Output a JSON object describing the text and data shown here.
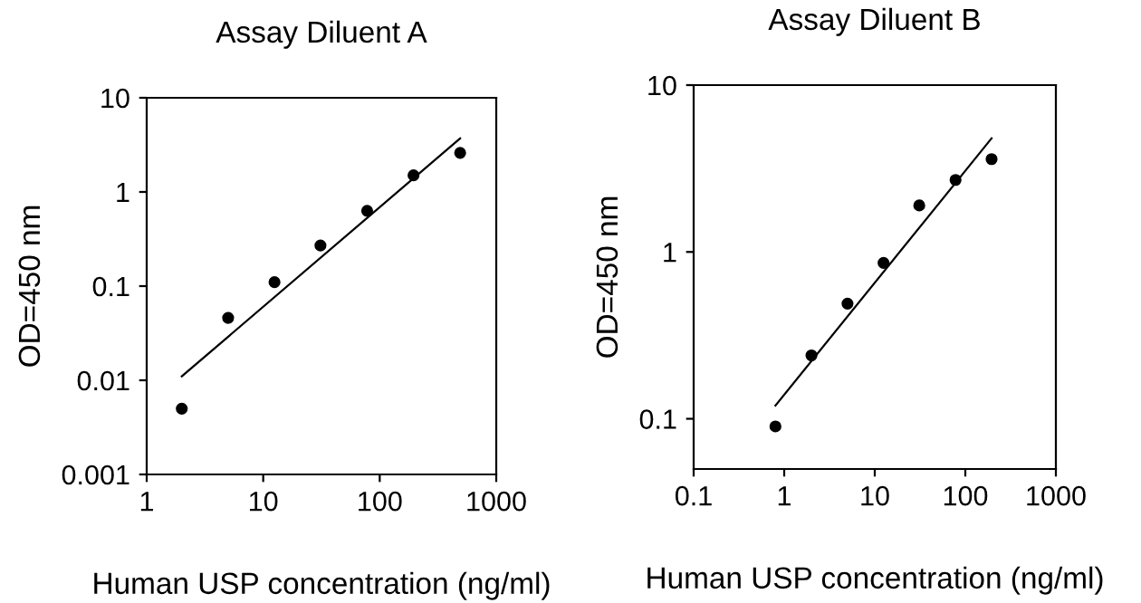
{
  "chart_data": [
    {
      "type": "scatter",
      "title": "Assay Diluent A",
      "xlabel": "Human USP concentration (ng/ml)",
      "ylabel": "OD=450 nm",
      "log": "xy",
      "xlim": [
        1,
        1000
      ],
      "xticks": [
        1,
        10,
        100,
        1000
      ],
      "ylim": [
        0.001,
        10
      ],
      "yticks": [
        0.001,
        0.01,
        0.1,
        1,
        10
      ],
      "grid": false,
      "legend": false,
      "marker": "circle",
      "series": [
        {
          "color": "#000000",
          "x": [
            2,
            5,
            12.5,
            31,
            78,
            195,
            490
          ],
          "values": [
            0.005,
            0.046,
            0.11,
            0.27,
            0.63,
            1.5,
            2.6
          ]
        },
        {
          "type": "line",
          "color": "#000000",
          "marker": "none",
          "line_style": "solid",
          "x": [
            2,
            490
          ],
          "values": [
            0.011,
            3.7
          ]
        }
      ]
    },
    {
      "type": "scatter",
      "title": "Assay Diluent B",
      "xlabel": "Human USP concentration (ng/ml)",
      "ylabel": "OD=450 nm",
      "log": "xy",
      "xlim": [
        0.1,
        1000
      ],
      "xticks": [
        0.1,
        1,
        10,
        100,
        1000
      ],
      "ylim": [
        0.05,
        10
      ],
      "yticks": [
        0.1,
        1,
        10
      ],
      "grid": false,
      "legend": false,
      "marker": "circle",
      "series": [
        {
          "color": "#000000",
          "x": [
            0.8,
            2,
            5,
            12.5,
            31,
            78,
            195
          ],
          "values": [
            0.09,
            0.24,
            0.49,
            0.86,
            1.9,
            2.7,
            3.6
          ]
        },
        {
          "type": "line",
          "color": "#000000",
          "marker": "none",
          "line_style": "solid",
          "x": [
            0.8,
            195
          ],
          "values": [
            0.12,
            4.8
          ]
        }
      ]
    }
  ]
}
